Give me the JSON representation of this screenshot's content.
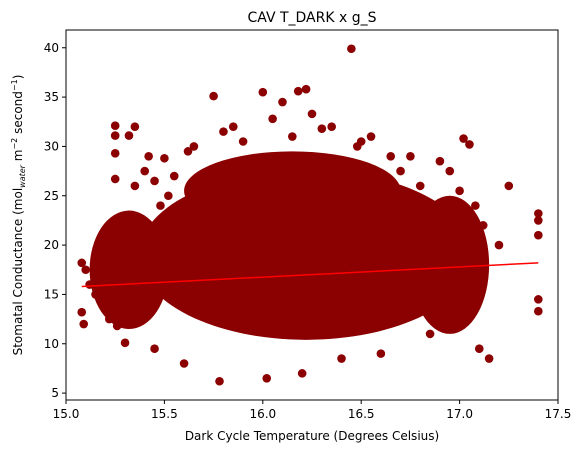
{
  "chart_data": {
    "type": "scatter",
    "title": "CAV T_DARK x g_S",
    "xlabel": "Dark Cycle Temperature (Degrees Celsius)",
    "ylabel": {
      "main": "Stomatal Conductance (mol",
      "sub": "water",
      "mid": " m",
      "sup1": "−2",
      "mid2": " second",
      "sup2": "−1",
      "close": ")"
    },
    "xlim": [
      15.0,
      17.5
    ],
    "ylim": [
      4.3,
      41.8
    ],
    "x_ticks": [
      "15.0",
      "15.5",
      "16.0",
      "16.5",
      "17.0",
      "17.5"
    ],
    "y_ticks": [
      "5",
      "10",
      "15",
      "20",
      "25",
      "30",
      "35",
      "40"
    ],
    "grid": false,
    "legend": "none",
    "point_color": "#8b0000",
    "line_color": "#ff0000",
    "regression_line": {
      "x": [
        15.08,
        17.4
      ],
      "y": [
        15.8,
        18.2
      ]
    },
    "scatter_points": {
      "x": [
        15.08,
        15.08,
        15.09,
        15.1,
        15.12,
        15.15,
        15.18,
        15.2,
        15.22,
        15.25,
        15.25,
        15.25,
        15.25,
        15.26,
        15.28,
        15.3,
        15.32,
        15.35,
        15.35,
        15.38,
        15.4,
        15.42,
        15.45,
        15.45,
        15.48,
        15.5,
        15.52,
        15.55,
        15.6,
        15.62,
        15.65,
        15.7,
        15.75,
        15.78,
        15.8,
        15.85,
        15.9,
        15.95,
        16.0,
        16.02,
        16.05,
        16.1,
        16.15,
        16.18,
        16.2,
        16.22,
        16.25,
        16.3,
        16.35,
        16.4,
        16.45,
        16.48,
        16.5,
        16.52,
        16.55,
        16.6,
        16.65,
        16.7,
        16.75,
        16.8,
        16.85,
        16.9,
        16.95,
        17.0,
        17.02,
        17.05,
        17.08,
        17.1,
        17.12,
        17.15,
        17.2,
        17.25,
        17.4,
        17.4,
        17.4,
        17.4,
        17.4
      ],
      "y": [
        18.2,
        13.2,
        12.0,
        17.5,
        16.0,
        15.0,
        19.0,
        18.0,
        12.5,
        32.1,
        31.1,
        29.3,
        26.7,
        11.8,
        20.5,
        10.1,
        31.1,
        26.0,
        32.0,
        22.5,
        27.5,
        29.0,
        9.5,
        26.5,
        24.0,
        28.8,
        25.0,
        27.0,
        8.0,
        29.5,
        30.0,
        25.0,
        35.1,
        6.2,
        31.5,
        32.0,
        30.5,
        28.0,
        35.5,
        6.5,
        32.8,
        34.5,
        31.0,
        35.6,
        7.0,
        35.8,
        33.3,
        31.8,
        32.0,
        8.5,
        39.9,
        30.0,
        30.5,
        28.0,
        31.0,
        9.0,
        29.0,
        27.5,
        29.0,
        26.0,
        11.0,
        28.5,
        27.5,
        25.5,
        30.8,
        30.2,
        24.0,
        9.5,
        22.0,
        8.5,
        20.0,
        26.0,
        23.2,
        22.5,
        21.0,
        14.5,
        13.3
      ]
    },
    "cloud_shapes": {
      "main": {
        "cx": 16.22,
        "cy": 19.0,
        "rx": 0.85,
        "ry": 8.6
      },
      "top": {
        "cx": 16.15,
        "cy": 25.5,
        "rx": 0.55,
        "ry": 4.0
      },
      "left": {
        "cx": 15.32,
        "cy": 17.5,
        "rx": 0.2,
        "ry": 6.0
      },
      "right": {
        "cx": 16.95,
        "cy": 18.0,
        "rx": 0.2,
        "ry": 7.0
      }
    }
  }
}
